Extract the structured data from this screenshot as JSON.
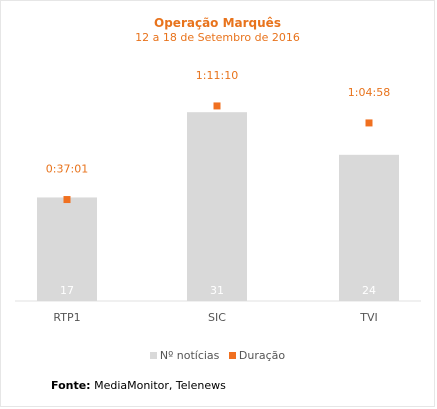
{
  "chart_data": {
    "type": "bar",
    "title": "Operação Marquês",
    "subtitle": "12 a 18 de Setembro de 2016",
    "categories": [
      "RTP1",
      "SIC",
      "TVI"
    ],
    "series": [
      {
        "name": "Nº notícias",
        "type": "bar",
        "values": [
          17,
          31,
          24
        ],
        "color": "#d9d9d9"
      },
      {
        "name": "Duração",
        "type": "scatter",
        "values": [
          "0:37:01",
          "1:11:10",
          "1:04:58"
        ],
        "color": "#f07020"
      }
    ],
    "ylim": [
      0,
      33
    ],
    "grid": false,
    "legend": "bottom"
  },
  "source": {
    "label": "Fonte:",
    "text": "MediaMonitor, Telenews"
  },
  "colors": {
    "accent": "#e8731c",
    "bar": "#d9d9d9",
    "marker": "#f07020"
  }
}
